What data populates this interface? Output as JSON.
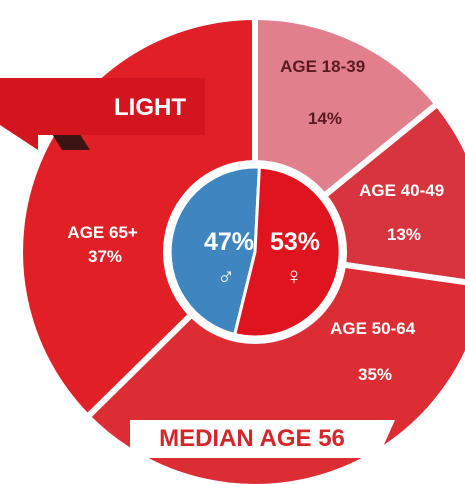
{
  "chart_data": {
    "type": "pie",
    "title": "LIGHT",
    "footer": "MEDIAN AGE 56",
    "slices": [
      {
        "label": "AGE 18-39",
        "value": 14,
        "text": "14%",
        "color": "#e17f8d"
      },
      {
        "label": "AGE 40-49",
        "value": 13,
        "text": "13%",
        "color": "#d8343d"
      },
      {
        "label": "AGE 50-64",
        "value": 35,
        "text": "35%",
        "color": "#dc2d34"
      },
      {
        "label": "AGE 65+",
        "value": 37,
        "text": "37%",
        "color": "#e01f26"
      }
    ],
    "gender": [
      {
        "label": "47%",
        "symbol": "♂",
        "value": 47,
        "color": "#3f86c0"
      },
      {
        "label": "53%",
        "symbol": "♀",
        "value": 53,
        "color": "#e0141f"
      }
    ]
  },
  "colors": {
    "accent": "#e01f26",
    "banner": "#d3151f",
    "banner_shadow": "#3b1413",
    "male": "#3f86c0",
    "female": "#e0141f"
  }
}
